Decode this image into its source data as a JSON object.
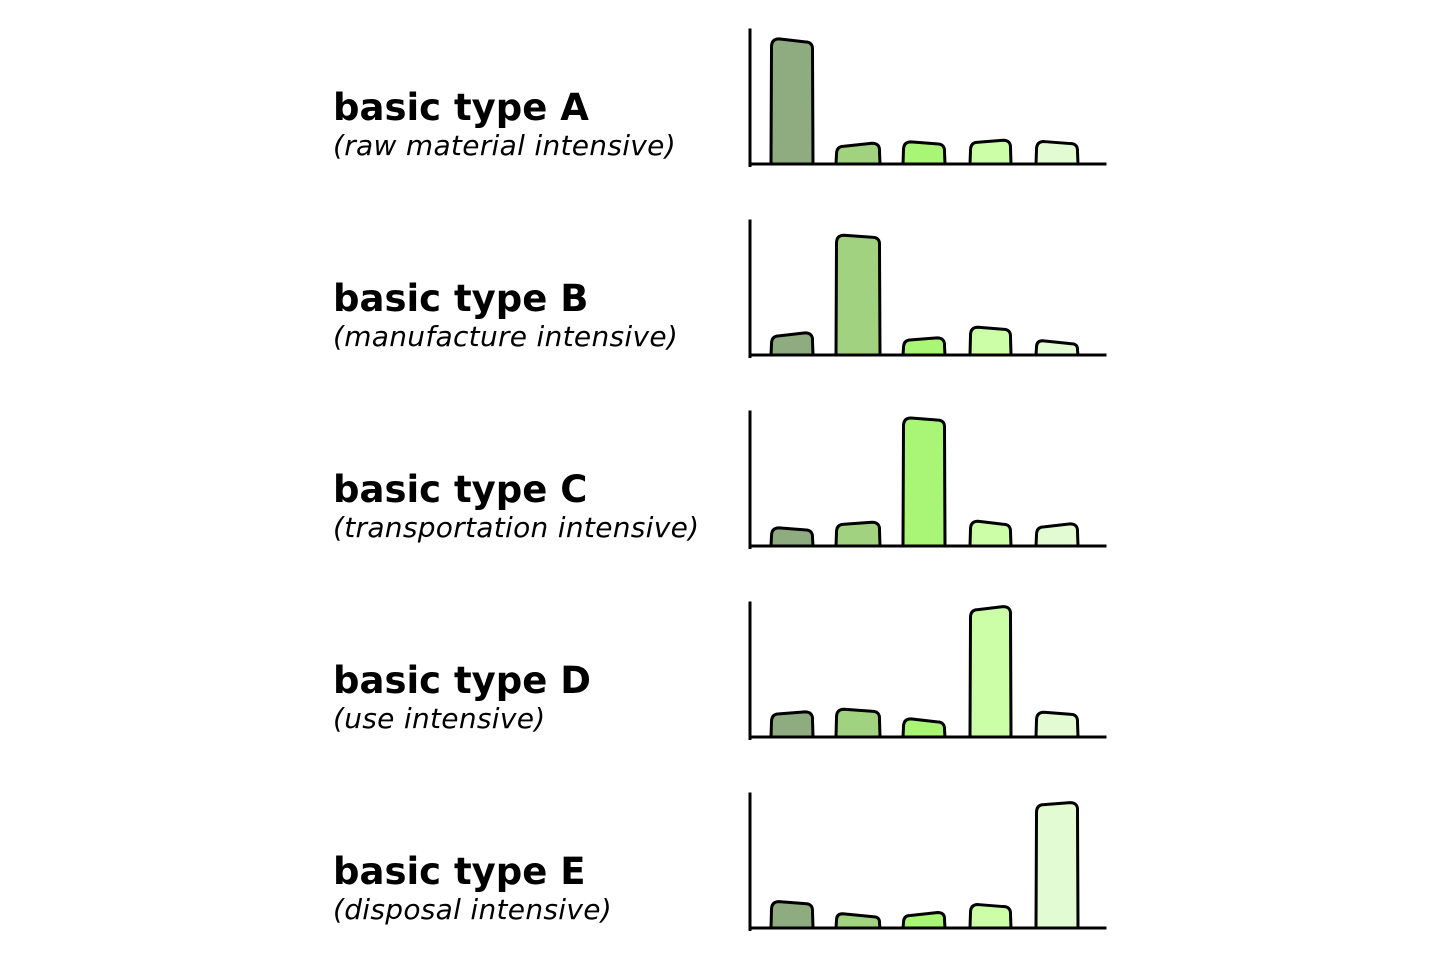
{
  "colors": {
    "bar_1": "#8fab80",
    "bar_2": "#a0d27f",
    "bar_3": "#a9f575",
    "bar_4": "#ccfea7",
    "bar_5": "#e3fbd2",
    "outline": "#000000"
  },
  "chart_data": [
    {
      "type": "bar",
      "title": "basic type A",
      "subtitle": "(raw material intensive)",
      "categories": [
        "1",
        "2",
        "3",
        "4",
        "5"
      ],
      "values": [
        94,
        15,
        16,
        18,
        17
      ],
      "ylim": [
        0,
        100
      ],
      "xlabel": "",
      "ylabel": ""
    },
    {
      "type": "bar",
      "title": "basic type B",
      "subtitle": "(manufacture intensive)",
      "categories": [
        "1",
        "2",
        "3",
        "4",
        "5"
      ],
      "values": [
        16,
        90,
        13,
        21,
        10
      ],
      "ylim": [
        0,
        100
      ],
      "xlabel": "",
      "ylabel": ""
    },
    {
      "type": "bar",
      "title": "basic type C",
      "subtitle": "(transportation intensive)",
      "categories": [
        "1",
        "2",
        "3",
        "4",
        "5"
      ],
      "values": [
        13,
        18,
        97,
        18,
        16
      ],
      "ylim": [
        0,
        100
      ],
      "xlabel": "",
      "ylabel": ""
    },
    {
      "type": "bar",
      "title": "basic type D",
      "subtitle": "(use intensive)",
      "categories": [
        "1",
        "2",
        "3",
        "4",
        "5"
      ],
      "values": [
        19,
        21,
        13,
        98,
        18
      ],
      "ylim": [
        0,
        100
      ],
      "xlabel": "",
      "ylabel": ""
    },
    {
      "type": "bar",
      "title": "basic type E",
      "subtitle": "(disposal intensive)",
      "categories": [
        "1",
        "2",
        "3",
        "4",
        "5"
      ],
      "values": [
        20,
        10,
        11,
        17,
        95
      ],
      "ylim": [
        0,
        100
      ],
      "xlabel": "",
      "ylabel": ""
    }
  ]
}
